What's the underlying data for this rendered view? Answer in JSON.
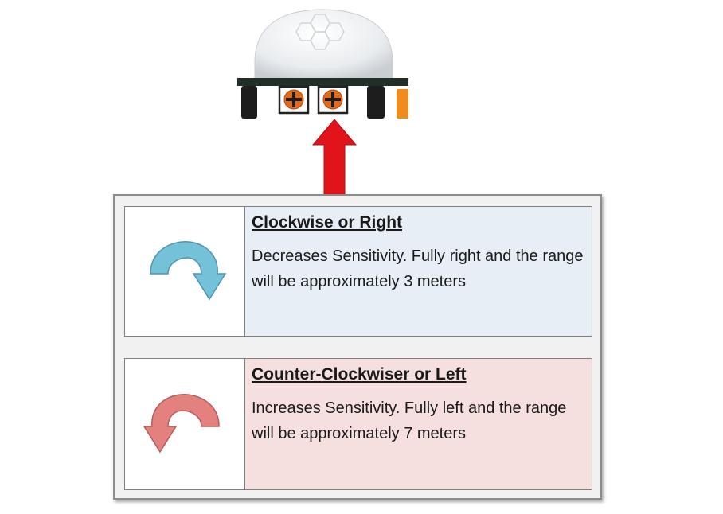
{
  "diagram": {
    "colors": {
      "dome": "#e9ecef",
      "board": "#222f28",
      "knob": "#e66a14",
      "arrow": "#e0141a",
      "clockwise_arrow": "#74c2d8",
      "counter_clockwise_arrow": "#e3817f",
      "row_clockwise_bg": "#e8eef5",
      "row_counter_bg": "#f5dfdf"
    },
    "rows": [
      {
        "icon": "clockwise-arrow-icon",
        "heading": "Clockwise or Right",
        "description": "Decreases Sensitivity.  Fully right and the range will be approximately 3 meters"
      },
      {
        "icon": "counter-clockwise-arrow-icon",
        "heading": "Counter-Clockwiser or Left",
        "description": "Increases Sensitivity.  Fully left and the range will be approximately 7 meters"
      }
    ]
  }
}
